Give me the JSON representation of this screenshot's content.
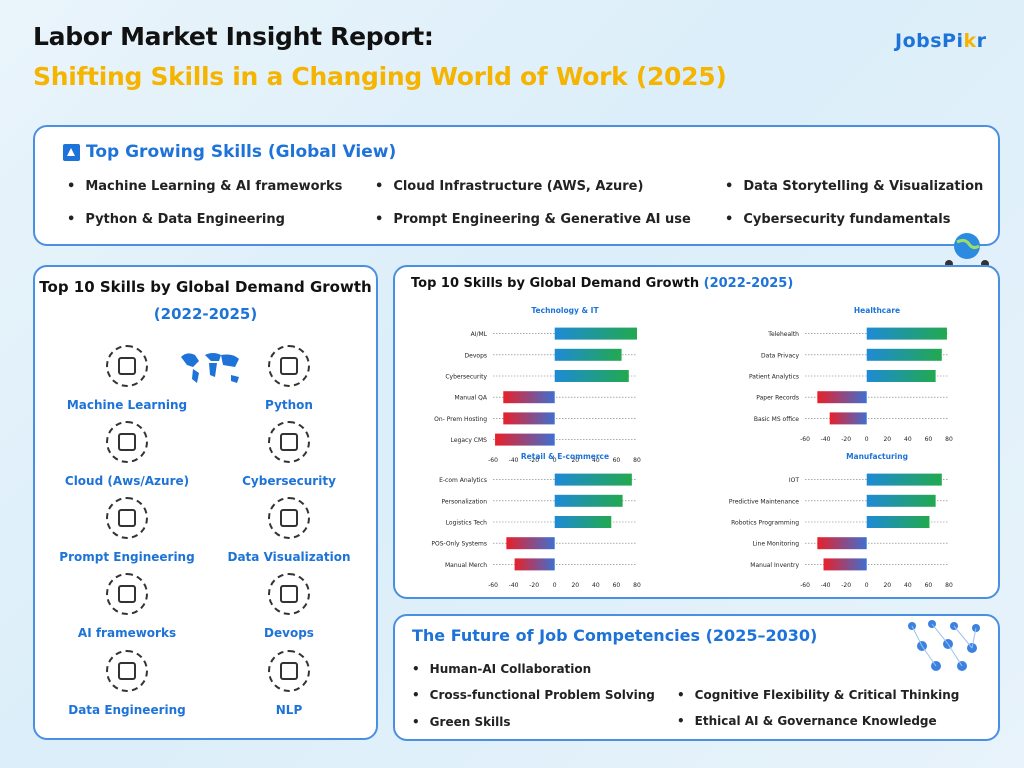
{
  "header": {
    "title_line1": "Labor Market Insight Report:",
    "title_line2": "Shifting Skills in a Changing World of Work (2025)",
    "logo_main": "JobsPi",
    "logo_accent": "k",
    "logo_end": "r"
  },
  "top_skills": {
    "title": "Top Growing Skills (Global View)",
    "items": [
      "Machine Learning & AI frameworks",
      "Cloud Infrastructure (AWS, Azure)",
      "Data Storytelling & Visualization",
      "Python & Data Engineering",
      "Prompt Engineering & Generative AI use",
      "Cybersecurity fundamentals"
    ]
  },
  "left_panel": {
    "title": "Top 10 Skills by Global Demand Growth",
    "subtitle": "(2022-2025)",
    "skills": [
      "Machine Learning",
      "Python",
      "Cloud (Aws/Azure)",
      "Cybersecurity",
      "Prompt Engineering",
      "Data Visualization",
      "AI frameworks",
      "Devops",
      "Data Engineering",
      "NLP"
    ]
  },
  "chart_panel": {
    "title": "Top 10 Skills by Global Demand Growth",
    "title_hl": "(2022-2025)"
  },
  "chart_data": [
    {
      "type": "bar",
      "title": "Technology & IT",
      "categories": [
        "AI/ML",
        "Devops",
        "Cybersecurity",
        "Manual QA",
        "On- Prem Hosting",
        "Legacy CMS"
      ],
      "values": [
        80,
        65,
        72,
        -50,
        -50,
        -58
      ],
      "xlim": [
        -60,
        80
      ],
      "xticks": [
        -60,
        -40,
        -20,
        0,
        20,
        40,
        60,
        80
      ]
    },
    {
      "type": "bar",
      "title": "Healthcare",
      "categories": [
        "Telehealth",
        "Data Privacy",
        "Patient Analytics",
        "Paper Records",
        "Basic MS office"
      ],
      "values": [
        78,
        73,
        67,
        -48,
        -36
      ],
      "xlim": [
        -60,
        80
      ],
      "xticks": [
        -60,
        -40,
        -20,
        0,
        20,
        40,
        60,
        80
      ]
    },
    {
      "type": "bar",
      "title": "Retail & E-commerce",
      "categories": [
        "E-com Analytics",
        "Personalization",
        "Logistics Tech",
        "POS-Only Systems",
        "Manual Merch"
      ],
      "values": [
        75,
        66,
        55,
        -47,
        -39
      ],
      "xlim": [
        -60,
        80
      ],
      "xticks": [
        -60,
        -40,
        -20,
        0,
        20,
        40,
        60,
        80
      ]
    },
    {
      "type": "bar",
      "title": "Manufacturing",
      "categories": [
        "IOT",
        "Predictive Maintenance",
        "Robotics Programming",
        "Line Monitoring",
        "Manual Inventry"
      ],
      "values": [
        73,
        67,
        61,
        -48,
        -42
      ],
      "xlim": [
        -60,
        80
      ],
      "xticks": [
        -60,
        -40,
        -20,
        0,
        20,
        40,
        60,
        80
      ]
    }
  ],
  "future": {
    "title": "The Future of Job Competencies (2025–2030)",
    "items": [
      "Human-AI Collaboration",
      "Cross-functional Problem Solving",
      "Cognitive Flexibility & Critical Thinking",
      "Green Skills",
      "Ethical AI & Governance Knowledge"
    ]
  },
  "colors": {
    "accent": "#1e73d8",
    "title_yellow": "#f5b400",
    "border": "#4a90e2",
    "bar_pos_start": "#1e8ad6",
    "bar_pos_end": "#22a94f",
    "bar_neg_start": "#e8202a",
    "bar_neg_end": "#3f6fd0"
  }
}
